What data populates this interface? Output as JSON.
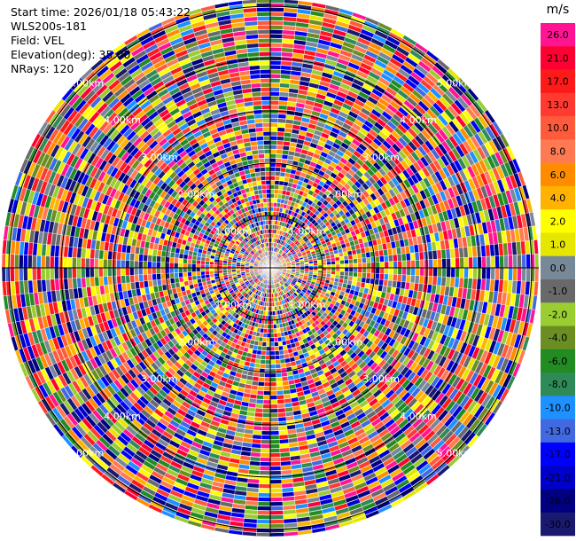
{
  "info": {
    "start_time": "Start time: 2026/01/18 05:43:22",
    "instrument": "WLS200s-181",
    "field": "Field: VEL",
    "elevation": "Elevation(deg): 35.00",
    "nrays": "NRays: 120"
  },
  "chart_data": {
    "type": "heatmap",
    "projection": "polar",
    "field": "VEL",
    "n_rays": 120,
    "range_rings_km": [
      "1.00km",
      "2.00km",
      "3.00km",
      "4.00km",
      "5.00km"
    ],
    "colorbar": {
      "title": "m/s",
      "bins": [
        {
          "label": "26.0",
          "color": "#FF1493"
        },
        {
          "label": "21.0",
          "color": "#FF0033"
        },
        {
          "label": "17.0",
          "color": "#FF1A1A"
        },
        {
          "label": "13.0",
          "color": "#FF3A30"
        },
        {
          "label": "10.0",
          "color": "#FF5A3C"
        },
        {
          "label": "8.0",
          "color": "#FF7A52"
        },
        {
          "label": "6.0",
          "color": "#FF8C00"
        },
        {
          "label": "4.0",
          "color": "#FFB300"
        },
        {
          "label": "2.0",
          "color": "#FFFF00"
        },
        {
          "label": "1.0",
          "color": "#E6E600"
        },
        {
          "label": "0.0",
          "color": "#778899"
        },
        {
          "label": "-1.0",
          "color": "#696969"
        },
        {
          "label": "-2.0",
          "color": "#9ACD32"
        },
        {
          "label": "-4.0",
          "color": "#6B8E23"
        },
        {
          "label": "-6.0",
          "color": "#228B22"
        },
        {
          "label": "-8.0",
          "color": "#2E8B57"
        },
        {
          "label": "-10.0",
          "color": "#1E90FF"
        },
        {
          "label": "-13.0",
          "color": "#4169E1"
        },
        {
          "label": "-17.0",
          "color": "#0000FF"
        },
        {
          "label": "-21.0",
          "color": "#0000CD"
        },
        {
          "label": "-26.0",
          "color": "#000080"
        },
        {
          "label": "-30.0",
          "color": "#191970"
        }
      ]
    }
  }
}
